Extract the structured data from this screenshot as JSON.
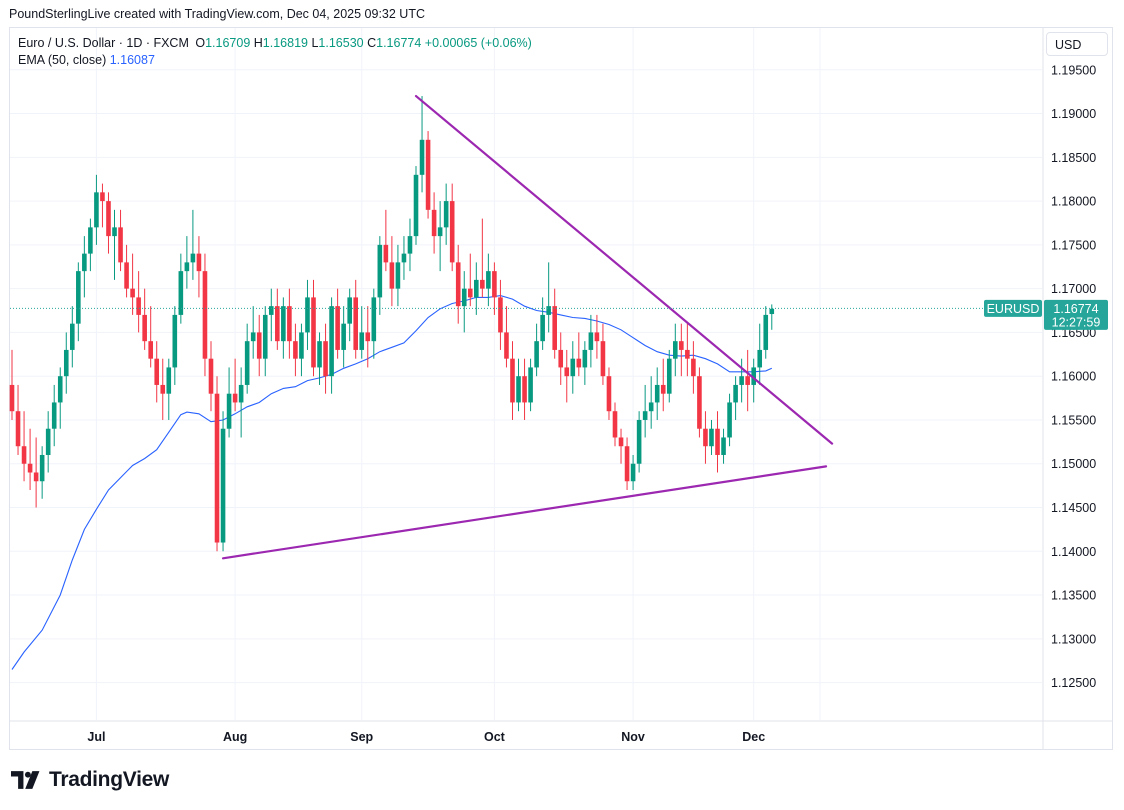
{
  "header": {
    "attribution": "PoundSterlingLive created with TradingView.com, Dec 04, 2025 09:32 UTC"
  },
  "legend": {
    "symbol": "Euro / U.S. Dollar · 1D · FXCM",
    "o_label": "O",
    "o_value": "1.16709",
    "h_label": "H",
    "h_value": "1.16819",
    "l_label": "L",
    "l_value": "1.16530",
    "c_label": "C",
    "c_value": "1.16774",
    "change": "+0.00065 (+0.06%)",
    "ema_label": "EMA (50, close)",
    "ema_value": "1.16087"
  },
  "currency_button": "USD",
  "price_tag": {
    "symbol": "EURUSD",
    "price": "1.16774",
    "countdown": "12:27:59"
  },
  "logo": {
    "text": "TradingView"
  },
  "colors": {
    "up": "#089981",
    "down": "#f23645",
    "ema": "#2962ff",
    "trendline": "#9c27b0",
    "accent": "#26a69a"
  },
  "chart_data": {
    "type": "candlestick",
    "title": "Euro / U.S. Dollar · 1D · FXCM",
    "ylim": [
      1.1205,
      1.2
    ],
    "yticks": [
      "1.19500",
      "1.19000",
      "1.18500",
      "1.18000",
      "1.17500",
      "1.17000",
      "1.16500",
      "1.16000",
      "1.15500",
      "1.15000",
      "1.14500",
      "1.14000",
      "1.13500",
      "1.13000",
      "1.12500"
    ],
    "xticks": [
      {
        "label": "Jul",
        "index": 14
      },
      {
        "label": "Aug",
        "index": 37
      },
      {
        "label": "Sep",
        "index": 58
      },
      {
        "label": "Oct",
        "index": 80
      },
      {
        "label": "Nov",
        "index": 103
      },
      {
        "label": "Dec",
        "index": 123
      },
      {
        "label": "",
        "index": 134
      }
    ],
    "candles": [
      [
        1.159,
        1.163,
        1.155,
        1.156
      ],
      [
        1.156,
        1.159,
        1.151,
        1.152
      ],
      [
        1.152,
        1.156,
        1.148,
        1.15
      ],
      [
        1.15,
        1.154,
        1.147,
        1.149
      ],
      [
        1.149,
        1.153,
        1.145,
        1.148
      ],
      [
        1.148,
        1.152,
        1.146,
        1.151
      ],
      [
        1.151,
        1.156,
        1.149,
        1.154
      ],
      [
        1.154,
        1.159,
        1.152,
        1.157
      ],
      [
        1.157,
        1.161,
        1.154,
        1.16
      ],
      [
        1.16,
        1.165,
        1.158,
        1.163
      ],
      [
        1.163,
        1.168,
        1.161,
        1.166
      ],
      [
        1.166,
        1.173,
        1.164,
        1.172
      ],
      [
        1.172,
        1.176,
        1.169,
        1.174
      ],
      [
        1.174,
        1.178,
        1.172,
        1.177
      ],
      [
        1.177,
        1.183,
        1.175,
        1.181
      ],
      [
        1.181,
        1.182,
        1.177,
        1.18
      ],
      [
        1.18,
        1.181,
        1.174,
        1.176
      ],
      [
        1.176,
        1.179,
        1.171,
        1.177
      ],
      [
        1.177,
        1.179,
        1.172,
        1.173
      ],
      [
        1.173,
        1.175,
        1.169,
        1.17
      ],
      [
        1.17,
        1.174,
        1.167,
        1.169
      ],
      [
        1.169,
        1.172,
        1.165,
        1.167
      ],
      [
        1.167,
        1.17,
        1.163,
        1.164
      ],
      [
        1.164,
        1.168,
        1.161,
        1.162
      ],
      [
        1.162,
        1.164,
        1.157,
        1.159
      ],
      [
        1.159,
        1.162,
        1.155,
        1.158
      ],
      [
        1.158,
        1.162,
        1.155,
        1.161
      ],
      [
        1.161,
        1.168,
        1.159,
        1.167
      ],
      [
        1.167,
        1.174,
        1.166,
        1.172
      ],
      [
        1.172,
        1.176,
        1.17,
        1.173
      ],
      [
        1.173,
        1.179,
        1.171,
        1.174
      ],
      [
        1.174,
        1.176,
        1.169,
        1.172
      ],
      [
        1.172,
        1.174,
        1.16,
        1.162
      ],
      [
        1.162,
        1.164,
        1.156,
        1.158
      ],
      [
        1.158,
        1.16,
        1.14,
        1.141
      ],
      [
        1.141,
        1.156,
        1.14,
        1.154
      ],
      [
        1.154,
        1.161,
        1.153,
        1.158
      ],
      [
        1.158,
        1.162,
        1.156,
        1.157
      ],
      [
        1.157,
        1.161,
        1.153,
        1.159
      ],
      [
        1.159,
        1.166,
        1.158,
        1.164
      ],
      [
        1.164,
        1.168,
        1.162,
        1.165
      ],
      [
        1.165,
        1.167,
        1.16,
        1.162
      ],
      [
        1.162,
        1.168,
        1.16,
        1.167
      ],
      [
        1.167,
        1.17,
        1.164,
        1.168
      ],
      [
        1.168,
        1.17,
        1.163,
        1.164
      ],
      [
        1.164,
        1.169,
        1.162,
        1.168
      ],
      [
        1.168,
        1.17,
        1.162,
        1.164
      ],
      [
        1.164,
        1.166,
        1.16,
        1.162
      ],
      [
        1.162,
        1.166,
        1.16,
        1.165
      ],
      [
        1.165,
        1.171,
        1.163,
        1.169
      ],
      [
        1.169,
        1.171,
        1.16,
        1.161
      ],
      [
        1.161,
        1.165,
        1.159,
        1.164
      ],
      [
        1.164,
        1.166,
        1.158,
        1.16
      ],
      [
        1.16,
        1.169,
        1.158,
        1.168
      ],
      [
        1.168,
        1.17,
        1.162,
        1.163
      ],
      [
        1.163,
        1.168,
        1.161,
        1.166
      ],
      [
        1.166,
        1.17,
        1.164,
        1.169
      ],
      [
        1.169,
        1.171,
        1.162,
        1.163
      ],
      [
        1.163,
        1.168,
        1.162,
        1.165
      ],
      [
        1.165,
        1.168,
        1.161,
        1.164
      ],
      [
        1.164,
        1.17,
        1.162,
        1.169
      ],
      [
        1.169,
        1.176,
        1.167,
        1.175
      ],
      [
        1.175,
        1.179,
        1.172,
        1.173
      ],
      [
        1.173,
        1.176,
        1.168,
        1.17
      ],
      [
        1.17,
        1.175,
        1.168,
        1.173
      ],
      [
        1.173,
        1.176,
        1.171,
        1.174
      ],
      [
        1.174,
        1.178,
        1.172,
        1.176
      ],
      [
        1.176,
        1.184,
        1.175,
        1.183
      ],
      [
        1.183,
        1.192,
        1.181,
        1.187
      ],
      [
        1.187,
        1.188,
        1.178,
        1.179
      ],
      [
        1.179,
        1.181,
        1.174,
        1.176
      ],
      [
        1.176,
        1.18,
        1.172,
        1.177
      ],
      [
        1.177,
        1.182,
        1.175,
        1.18
      ],
      [
        1.18,
        1.182,
        1.172,
        1.173
      ],
      [
        1.173,
        1.175,
        1.166,
        1.168
      ],
      [
        1.168,
        1.172,
        1.165,
        1.17
      ],
      [
        1.17,
        1.174,
        1.168,
        1.169
      ],
      [
        1.169,
        1.173,
        1.167,
        1.171
      ],
      [
        1.171,
        1.178,
        1.169,
        1.17
      ],
      [
        1.17,
        1.174,
        1.168,
        1.172
      ],
      [
        1.172,
        1.173,
        1.167,
        1.169
      ],
      [
        1.169,
        1.171,
        1.163,
        1.165
      ],
      [
        1.165,
        1.168,
        1.161,
        1.162
      ],
      [
        1.162,
        1.164,
        1.155,
        1.157
      ],
      [
        1.157,
        1.162,
        1.156,
        1.16
      ],
      [
        1.16,
        1.162,
        1.155,
        1.157
      ],
      [
        1.157,
        1.162,
        1.156,
        1.161
      ],
      [
        1.161,
        1.166,
        1.16,
        1.164
      ],
      [
        1.164,
        1.169,
        1.163,
        1.167
      ],
      [
        1.167,
        1.173,
        1.165,
        1.168
      ],
      [
        1.168,
        1.17,
        1.162,
        1.163
      ],
      [
        1.163,
        1.165,
        1.159,
        1.161
      ],
      [
        1.161,
        1.163,
        1.157,
        1.16
      ],
      [
        1.16,
        1.164,
        1.158,
        1.162
      ],
      [
        1.162,
        1.165,
        1.16,
        1.161
      ],
      [
        1.161,
        1.164,
        1.159,
        1.163
      ],
      [
        1.163,
        1.167,
        1.161,
        1.165
      ],
      [
        1.165,
        1.167,
        1.162,
        1.164
      ],
      [
        1.164,
        1.166,
        1.159,
        1.16
      ],
      [
        1.16,
        1.161,
        1.155,
        1.156
      ],
      [
        1.156,
        1.157,
        1.152,
        1.153
      ],
      [
        1.153,
        1.154,
        1.15,
        1.152
      ],
      [
        1.152,
        1.153,
        1.147,
        1.148
      ],
      [
        1.148,
        1.151,
        1.147,
        1.15
      ],
      [
        1.15,
        1.156,
        1.149,
        1.155
      ],
      [
        1.155,
        1.159,
        1.153,
        1.156
      ],
      [
        1.156,
        1.16,
        1.154,
        1.157
      ],
      [
        1.157,
        1.161,
        1.155,
        1.159
      ],
      [
        1.159,
        1.162,
        1.156,
        1.158
      ],
      [
        1.158,
        1.163,
        1.157,
        1.162
      ],
      [
        1.162,
        1.166,
        1.16,
        1.164
      ],
      [
        1.164,
        1.166,
        1.16,
        1.163
      ],
      [
        1.163,
        1.166,
        1.16,
        1.162
      ],
      [
        1.162,
        1.164,
        1.158,
        1.16
      ],
      [
        1.16,
        1.161,
        1.153,
        1.154
      ],
      [
        1.154,
        1.156,
        1.15,
        1.152
      ],
      [
        1.152,
        1.155,
        1.151,
        1.154
      ],
      [
        1.154,
        1.156,
        1.149,
        1.151
      ],
      [
        1.151,
        1.154,
        1.15,
        1.153
      ],
      [
        1.153,
        1.158,
        1.152,
        1.157
      ],
      [
        1.157,
        1.16,
        1.155,
        1.159
      ],
      [
        1.159,
        1.162,
        1.157,
        1.16
      ],
      [
        1.16,
        1.163,
        1.156,
        1.159
      ],
      [
        1.159,
        1.162,
        1.157,
        1.161
      ],
      [
        1.161,
        1.166,
        1.159,
        1.163
      ],
      [
        1.163,
        1.168,
        1.162,
        1.167
      ],
      [
        1.1671,
        1.1682,
        1.1653,
        1.1677
      ]
    ],
    "ema": [
      [
        0,
        1.1265
      ],
      [
        2,
        1.1285
      ],
      [
        5,
        1.131
      ],
      [
        8,
        1.135
      ],
      [
        10,
        1.139
      ],
      [
        12,
        1.1425
      ],
      [
        14,
        1.1448
      ],
      [
        16,
        1.147
      ],
      [
        18,
        1.1484
      ],
      [
        20,
        1.1498
      ],
      [
        22,
        1.1506
      ],
      [
        24,
        1.1516
      ],
      [
        26,
        1.1536
      ],
      [
        28,
        1.1556
      ],
      [
        29,
        1.1559
      ],
      [
        31,
        1.1557
      ],
      [
        33,
        1.1548
      ],
      [
        35,
        1.155
      ],
      [
        37,
        1.1557
      ],
      [
        39,
        1.1565
      ],
      [
        41,
        1.157
      ],
      [
        43,
        1.158
      ],
      [
        45,
        1.1586
      ],
      [
        47,
        1.1588
      ],
      [
        49,
        1.1595
      ],
      [
        51,
        1.1598
      ],
      [
        53,
        1.1602
      ],
      [
        55,
        1.1609
      ],
      [
        57,
        1.1614
      ],
      [
        59,
        1.162
      ],
      [
        61,
        1.1628
      ],
      [
        63,
        1.1633
      ],
      [
        65,
        1.1638
      ],
      [
        67,
        1.1652
      ],
      [
        69,
        1.1667
      ],
      [
        71,
        1.1677
      ],
      [
        73,
        1.1683
      ],
      [
        75,
        1.1686
      ],
      [
        77,
        1.169
      ],
      [
        79,
        1.169
      ],
      [
        81,
        1.1692
      ],
      [
        83,
        1.1688
      ],
      [
        85,
        1.168
      ],
      [
        87,
        1.1675
      ],
      [
        89,
        1.1673
      ],
      [
        91,
        1.167
      ],
      [
        93,
        1.1667
      ],
      [
        95,
        1.1666
      ],
      [
        97,
        1.1663
      ],
      [
        99,
        1.1659
      ],
      [
        101,
        1.1653
      ],
      [
        103,
        1.1644
      ],
      [
        105,
        1.1635
      ],
      [
        107,
        1.1628
      ],
      [
        109,
        1.1624
      ],
      [
        111,
        1.1623
      ],
      [
        113,
        1.1624
      ],
      [
        115,
        1.162
      ],
      [
        117,
        1.1614
      ],
      [
        119,
        1.1605
      ],
      [
        121,
        1.1605
      ],
      [
        123,
        1.1605
      ],
      [
        125,
        1.1606
      ],
      [
        126,
        1.1609
      ]
    ],
    "trendlines": [
      {
        "name": "upper",
        "from": [
          67,
          1.192
        ],
        "to": [
          136,
          1.1523
        ]
      },
      {
        "name": "lower",
        "from": [
          35,
          1.1392
        ],
        "to": [
          135,
          1.1497
        ]
      }
    ],
    "last_price": 1.16774
  }
}
